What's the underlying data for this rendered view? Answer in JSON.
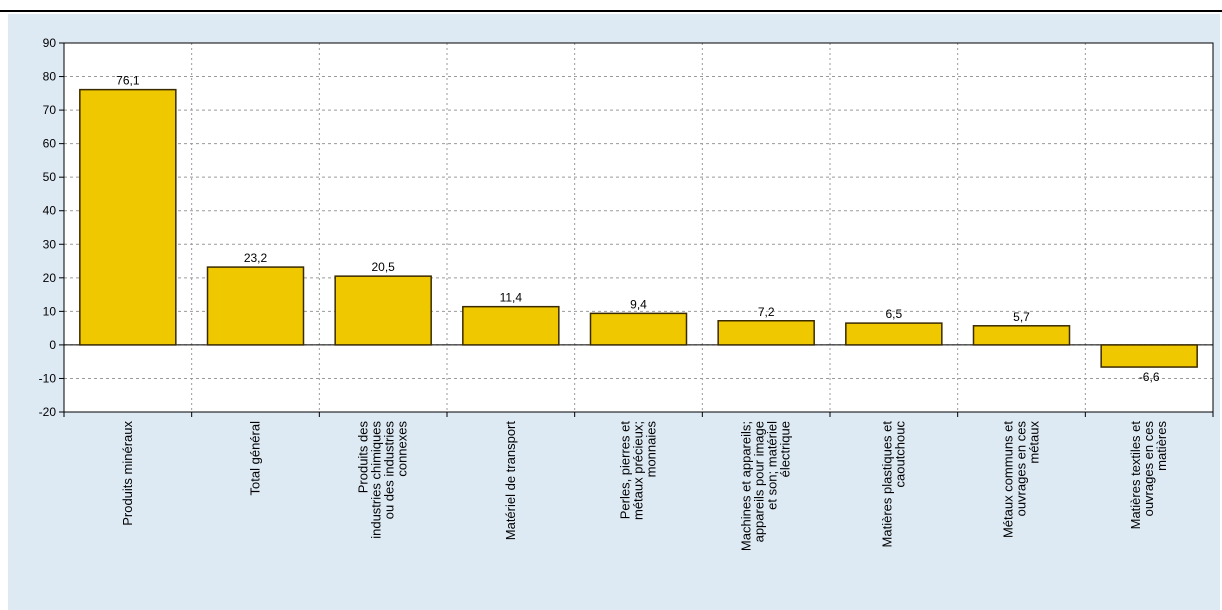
{
  "colors": {
    "panel_background": "#dde9f3",
    "bar_fill": "#f0c800",
    "bar_stroke": "#3a2a00",
    "grid": "#9a9a9a"
  },
  "chart_data": {
    "type": "bar",
    "title": "",
    "xlabel": "",
    "ylabel": "",
    "ylim": [
      -20,
      90
    ],
    "yticks": [
      -20,
      -10,
      0,
      10,
      20,
      30,
      40,
      50,
      60,
      70,
      80,
      90
    ],
    "grid": true,
    "categories": [
      [
        "Produits minéraux"
      ],
      [
        "Total général"
      ],
      [
        "Produits des",
        "industries chimiques",
        "ou des industries",
        "connexes"
      ],
      [
        "Matériel de transport"
      ],
      [
        "Perles, pierres et",
        "métaux précieux;",
        "monnaies"
      ],
      [
        "Machines et appareils;",
        "appareils pour image",
        "et son; matériel",
        "électrique"
      ],
      [
        "Matières plastiques et",
        "caoutchouc"
      ],
      [
        "Métaux communs et",
        "ouvrages en ces",
        "métaux"
      ],
      [
        "Matières textiles et",
        "ouvrages en ces",
        "matières"
      ]
    ],
    "values": [
      76.1,
      23.2,
      20.5,
      11.4,
      9.4,
      7.2,
      6.5,
      5.7,
      -6.6
    ],
    "data_labels": [
      "76,1",
      "23,2",
      "20,5",
      "11,4",
      "9,4",
      "7,2",
      "6,5",
      "5,7",
      "-6,6"
    ]
  }
}
